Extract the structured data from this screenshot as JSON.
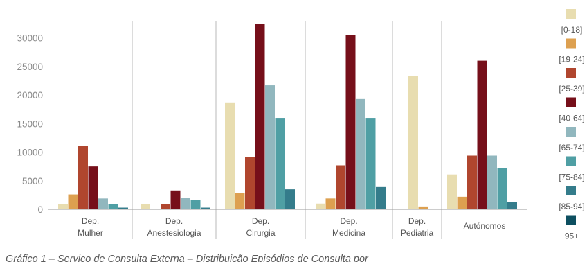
{
  "caption": "Gráfico 1 – Serviço de Consulta Externa – Distribuição Episódios de Consulta por",
  "chart_data": {
    "type": "bar",
    "title": "",
    "xlabel": "",
    "ylabel": "",
    "ylim": [
      0,
      32500
    ],
    "yticks": [
      0,
      5000,
      10000,
      15000,
      20000,
      25000,
      30000
    ],
    "tick_labels": [
      "0",
      "5000",
      "10000",
      "15000",
      "20000",
      "25000",
      "30000"
    ],
    "grid": false,
    "legend_position": "right",
    "categories": [
      [
        "Dep.",
        "Mulher"
      ],
      [
        "Dep.",
        "Anestesiologia"
      ],
      [
        "Dep.",
        "Cirurgia"
      ],
      [
        "Dep.",
        "Medicina"
      ],
      [
        "Dep.",
        "Pediatria"
      ],
      [
        "Autónomos"
      ]
    ],
    "series": [
      {
        "name": "[0-18]",
        "color": "#e8ddb0",
        "values": [
          900,
          900,
          18700,
          1000,
          23300,
          6100
        ]
      },
      {
        "name": "[19-24]",
        "color": "#dda050",
        "values": [
          2600,
          0,
          2800,
          1900,
          500,
          2200
        ]
      },
      {
        "name": "[25-39]",
        "color": "#b0462e",
        "values": [
          11100,
          900,
          9200,
          7700,
          0,
          9400
        ]
      },
      {
        "name": "[40-64]",
        "color": "#760f1a",
        "values": [
          7500,
          3300,
          32500,
          30500,
          0,
          26000
        ]
      },
      {
        "name": "[65-74]",
        "color": "#91b7be",
        "values": [
          1900,
          2000,
          21700,
          19300,
          0,
          9400
        ]
      },
      {
        "name": "[75-84]",
        "color": "#4f9fa4",
        "values": [
          900,
          1600,
          16000,
          16000,
          0,
          7200
        ]
      },
      {
        "name": "[85-94]",
        "color": "#347c8b",
        "values": [
          300,
          300,
          3500,
          3900,
          0,
          1300
        ]
      },
      {
        "name": "95+",
        "color": "#0d4f60",
        "values": [
          0,
          0,
          0,
          0,
          0,
          0
        ]
      }
    ]
  }
}
